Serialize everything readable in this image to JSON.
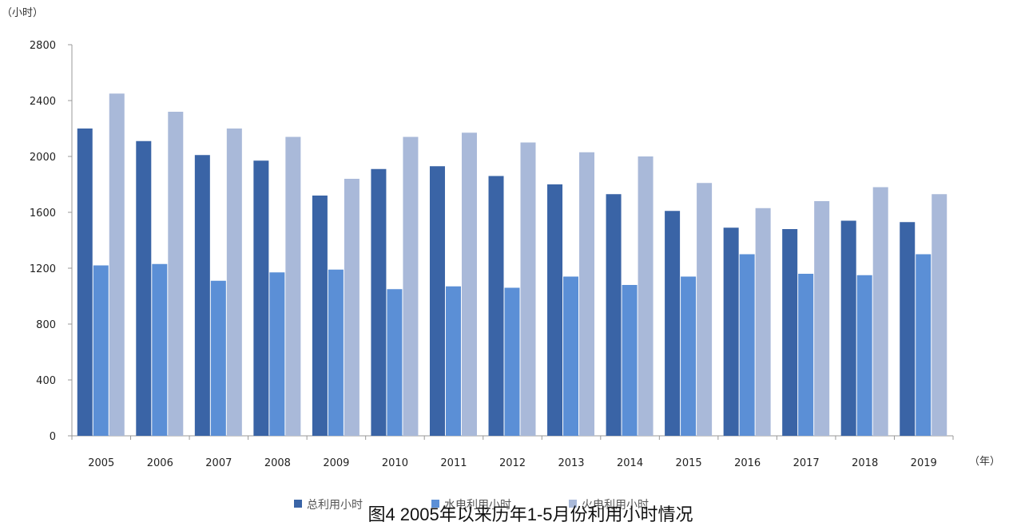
{
  "chart_data": {
    "type": "bar",
    "caption": "图4 2005年以来历年1-5月份利用小时情况",
    "ylabel": "（小时）",
    "xlabel": "（年）",
    "ylim": [
      0,
      2800
    ],
    "yticks": [
      0,
      400,
      800,
      1200,
      1600,
      2000,
      2400,
      2800
    ],
    "ytick_labels": [
      "0",
      "400",
      "800",
      "1200",
      "1600",
      "2000",
      "2400",
      "2800"
    ],
    "grid": false,
    "legend_position": "bottom-center",
    "categories": [
      "2005",
      "2006",
      "2007",
      "2008",
      "2009",
      "2010",
      "2011",
      "2012",
      "2013",
      "2014",
      "2015",
      "2016",
      "2017",
      "2018",
      "2019"
    ],
    "series": [
      {
        "name": "总利用小时",
        "color": "#3a64a6",
        "values": [
          2200,
          2110,
          2010,
          1970,
          1720,
          1910,
          1930,
          1860,
          1800,
          1730,
          1610,
          1490,
          1480,
          1540,
          1530
        ]
      },
      {
        "name": "水电利用小时",
        "color": "#5b8fd6",
        "values": [
          1220,
          1230,
          1110,
          1170,
          1190,
          1050,
          1070,
          1060,
          1140,
          1080,
          1140,
          1300,
          1160,
          1150,
          1300
        ]
      },
      {
        "name": "火电利用小时",
        "color": "#a9b9d9",
        "values": [
          2450,
          2320,
          2200,
          2140,
          1840,
          2140,
          2170,
          2100,
          2030,
          2000,
          1810,
          1630,
          1680,
          1780,
          1730
        ]
      }
    ]
  }
}
